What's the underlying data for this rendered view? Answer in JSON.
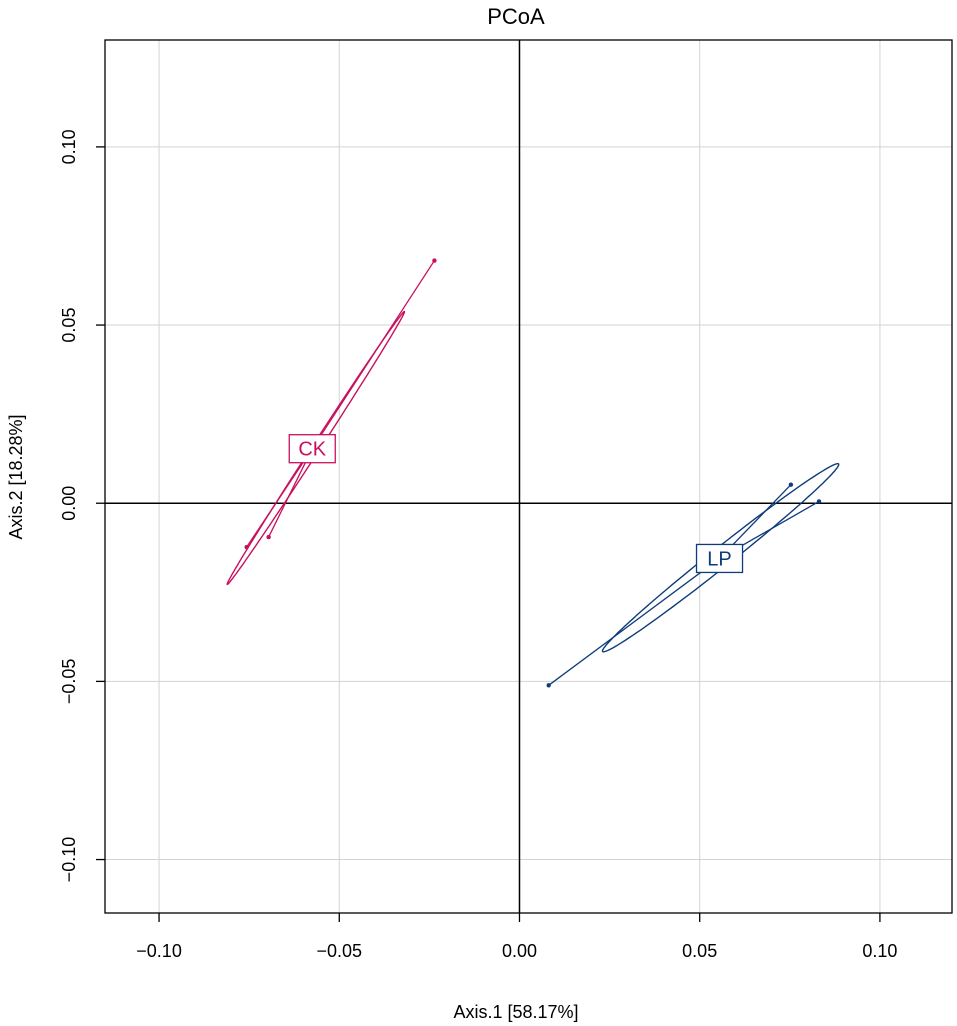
{
  "chart_data": {
    "type": "scatter",
    "title": "PCoA",
    "xlabel": "Axis.1  [58.17%]",
    "ylabel": "Axis.2  [18.28%]",
    "xlim": [
      -0.115,
      0.12
    ],
    "ylim": [
      -0.115,
      0.13
    ],
    "xticks": [
      -0.1,
      -0.05,
      0.0,
      0.05,
      0.1
    ],
    "yticks": [
      -0.1,
      -0.05,
      0.0,
      0.05,
      0.1
    ],
    "xtick_labels": [
      "−0.10",
      "−0.05",
      "0.00",
      "0.05",
      "0.10"
    ],
    "ytick_labels": [
      "−0.10",
      "−0.05",
      "0.00",
      "0.05",
      "0.10"
    ],
    "grid": true,
    "series": [
      {
        "name": "CK",
        "color": "#C8105E",
        "centroid": [
          -0.0575,
          0.0153
        ],
        "points": [
          [
            -0.0236,
            0.0681
          ],
          [
            -0.0757,
            -0.0123
          ],
          [
            -0.0696,
            -0.0095
          ]
        ],
        "ellipse": {
          "center": [
            -0.0565,
            0.0155
          ],
          "semi_major": 0.0455,
          "semi_minor": 0.0011,
          "angle_deg": 57.3
        }
      },
      {
        "name": "LP",
        "color": "#0D3C7A",
        "centroid": [
          0.0555,
          -0.0155
        ],
        "points": [
          [
            0.0081,
            -0.0511
          ],
          [
            0.0753,
            0.0052
          ],
          [
            0.0831,
            0.0005
          ]
        ],
        "ellipse": {
          "center": [
            0.0558,
            -0.0153
          ],
          "semi_major": 0.042,
          "semi_minor": 0.0027,
          "angle_deg": 38.8
        }
      }
    ]
  }
}
